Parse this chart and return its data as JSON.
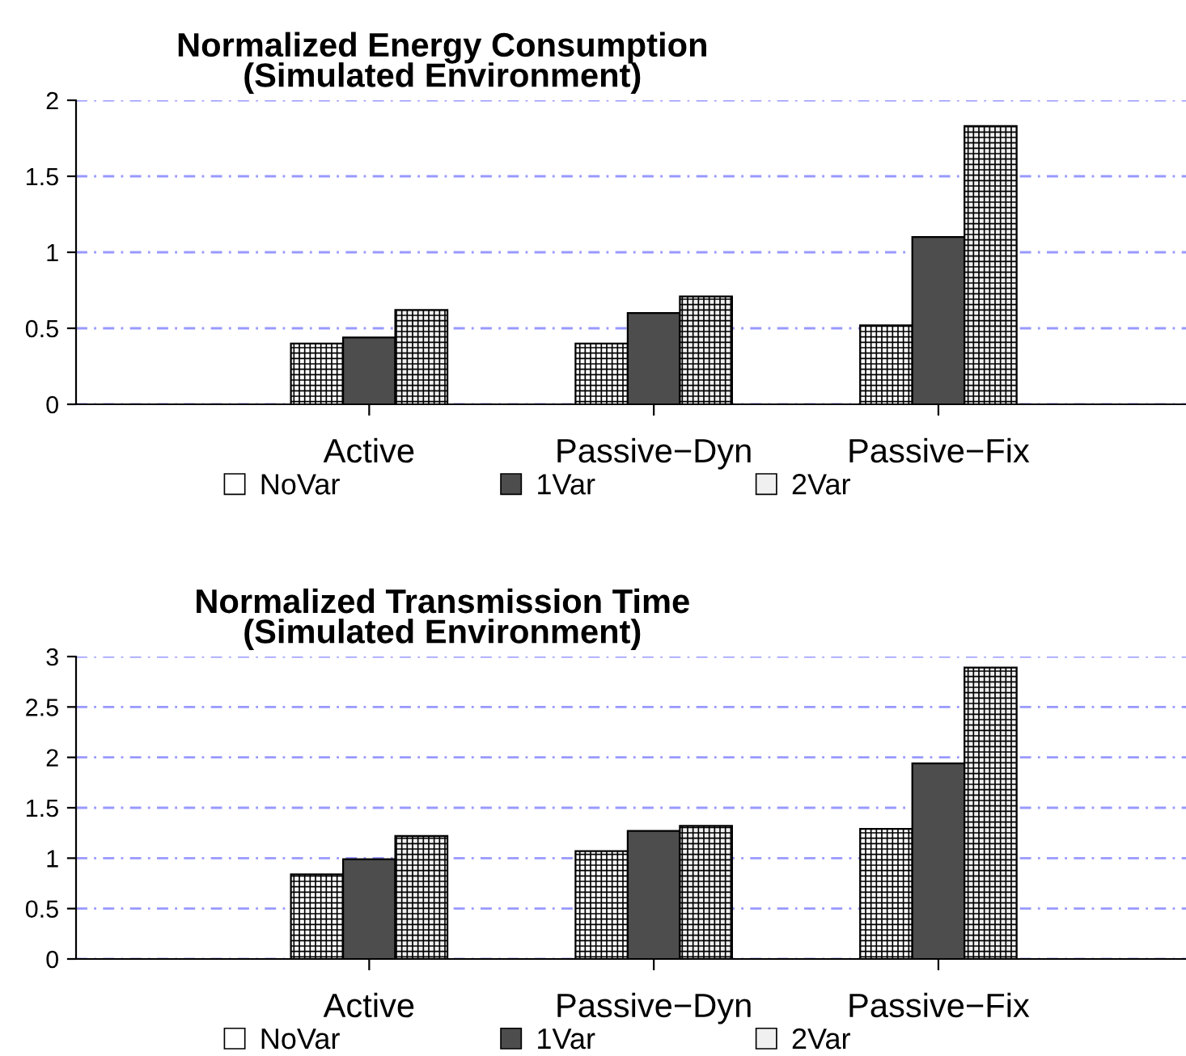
{
  "chart_data": [
    {
      "type": "bar",
      "title": "Normalized Energy Consumption\n(Simulated Environment)",
      "categories": [
        "Active",
        "Passive−Dyn",
        "Passive−Fix"
      ],
      "series": [
        {
          "name": "NoVar",
          "color": "#ffffff",
          "values": [
            0.4,
            0.4,
            0.52
          ]
        },
        {
          "name": "1Var",
          "color": "#4d4d4d",
          "values": [
            0.44,
            0.6,
            1.1
          ]
        },
        {
          "name": "2Var",
          "color": "#f0f0f0",
          "values": [
            0.62,
            0.71,
            1.83
          ]
        }
      ],
      "ylim": [
        0,
        2
      ],
      "yticks": [
        0,
        0.5,
        1,
        1.5,
        2
      ],
      "grid": "y",
      "legend": "bottom"
    },
    {
      "type": "bar",
      "title": "Normalized Transmission Time\n(Simulated Environment)",
      "categories": [
        "Active",
        "Passive−Dyn",
        "Passive−Fix"
      ],
      "series": [
        {
          "name": "NoVar",
          "color": "#ffffff",
          "values": [
            0.84,
            1.07,
            1.29
          ]
        },
        {
          "name": "1Var",
          "color": "#4d4d4d",
          "values": [
            0.99,
            1.27,
            1.94
          ]
        },
        {
          "name": "2Var",
          "color": "#f0f0f0",
          "values": [
            1.22,
            1.32,
            2.89
          ]
        }
      ],
      "ylim": [
        0,
        3
      ],
      "yticks": [
        0,
        0.5,
        1,
        1.5,
        2,
        2.5,
        3
      ],
      "grid": "y",
      "legend": "bottom"
    }
  ]
}
